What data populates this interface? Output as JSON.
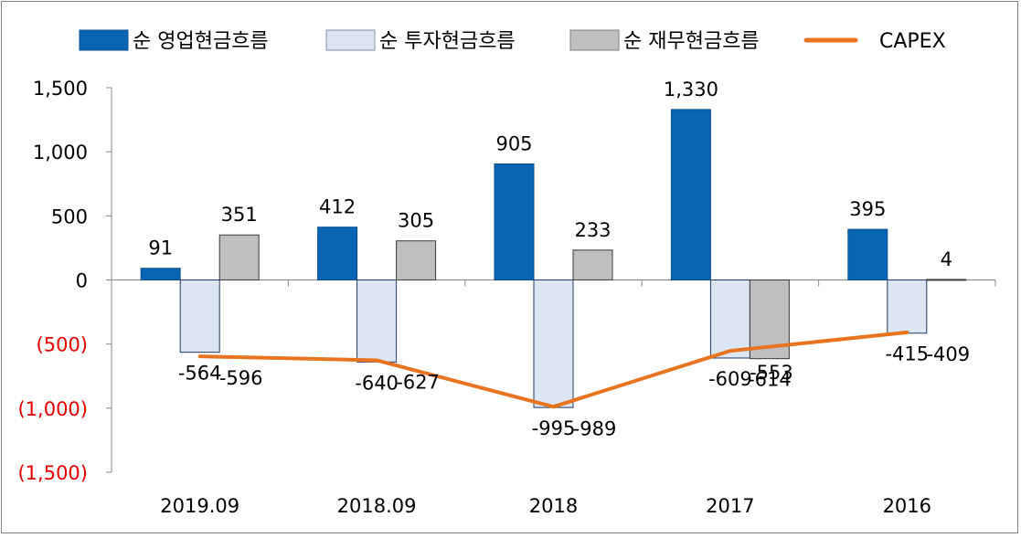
{
  "chart_data": {
    "type": "bar",
    "title": "",
    "xlabel": "",
    "ylabel": "",
    "categories": [
      "2019.09",
      "2018.09",
      "2018",
      "2017",
      "2016"
    ],
    "ylim": [
      -1500,
      1500
    ],
    "yticks": [
      1500,
      1000,
      500,
      0,
      -500,
      -1000,
      -1500
    ],
    "ytick_labels": [
      "1,500",
      "1,000",
      "500",
      "0",
      "(500)",
      "(1,000)",
      "(1,500)"
    ],
    "negative_tick_color": "#e60000",
    "grid": false,
    "legend_position": "top",
    "series": [
      {
        "name": "순 영업현금흐름",
        "type": "bar",
        "color": "#0a64b4",
        "values": [
          91,
          412,
          905,
          1330,
          395
        ],
        "labels": [
          "91",
          "412",
          "905",
          "1,330",
          "395"
        ]
      },
      {
        "name": "순 투자현금흐름",
        "type": "bar",
        "color": "#dce6f2",
        "values": [
          -564,
          -640,
          -995,
          -609,
          -415
        ],
        "labels": [
          "-564",
          "-640",
          "-995",
          "-609",
          "-415"
        ]
      },
      {
        "name": "순 재무현금흐름",
        "type": "bar",
        "color": "#bfbfbf",
        "values": [
          351,
          305,
          233,
          -614,
          4
        ],
        "labels": [
          "351",
          "305",
          "233",
          "-614",
          "4"
        ]
      },
      {
        "name": "CAPEX",
        "type": "line",
        "color": "#e9731f",
        "values": [
          -596,
          -627,
          -989,
          -553,
          -409
        ],
        "labels": [
          "-596",
          "-627",
          "-989",
          "-553",
          "-409"
        ]
      }
    ]
  }
}
